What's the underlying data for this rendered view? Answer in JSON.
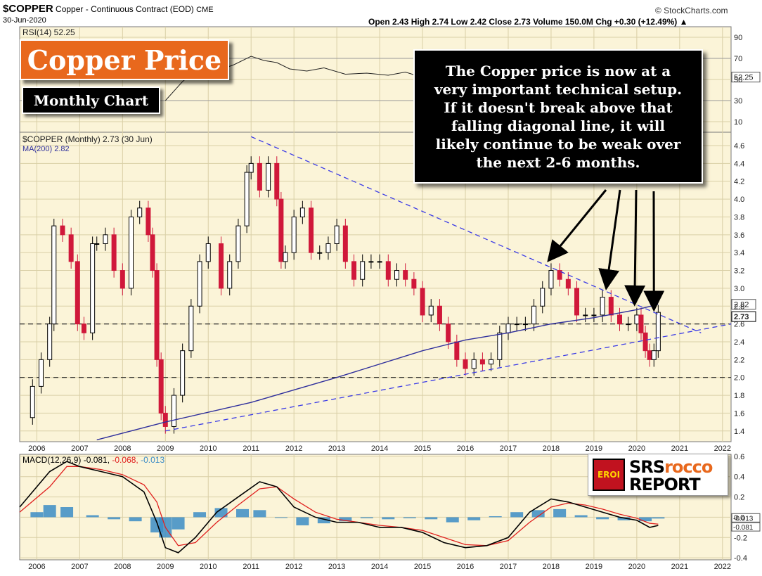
{
  "header": {
    "symbol": "$COPPER",
    "description": "Copper - Continuous Contract (EOD)",
    "exchange": "CME",
    "date": "30-Jun-2020",
    "copyright": "© StockCharts.com",
    "ohlc": "Open 2.43  High 2.74  Low 2.42  Close 2.73  Volume 150.0M  Chg +0.30 (+12.49%) ▲"
  },
  "overlay": {
    "title": "Copper Price",
    "subtitle": "Monthly Chart",
    "note": "The Copper price is now at a\nvery important technical setup.\nIf it doesn't break above that\nfalling diagonal line, it will\nlikely continue to be weak over\nthe next 2-6 months.",
    "logo_line1a": "SRS",
    "logo_line1b": "rocco",
    "logo_line2": "REPORT",
    "logo_badge": "EROI"
  },
  "colors": {
    "panel_bg": "#fbf4d8",
    "up_candle": "#000000",
    "down_candle": "#d0183a",
    "ma_line": "#2f2f9c",
    "trendline": "#3a3ae6",
    "macd_line": "#000000",
    "signal_line": "#e0201e",
    "histogram": "#3b8cc6",
    "accent_orange": "#e8681d"
  },
  "chart_data": [
    {
      "type": "line",
      "title": "RSI(14) 52.25",
      "series": [
        {
          "name": "RSI(14) 52.25",
          "x": [
            2009.0,
            2009.4,
            2009.8,
            2010.2,
            2010.6,
            2011.0,
            2011.3,
            2011.6,
            2011.9,
            2012.3,
            2012.7,
            2013.2,
            2013.7,
            2014.2,
            2014.6,
            2015.0
          ],
          "values": [
            30,
            48,
            62,
            58,
            64,
            72,
            68,
            66,
            60,
            58,
            61,
            55,
            56,
            54,
            57,
            52
          ]
        }
      ],
      "ylim": [
        0,
        100
      ],
      "yticks": [
        10,
        30,
        50,
        70,
        90
      ],
      "last_value_label": "52.25"
    },
    {
      "type": "bar",
      "title": "$COPPER (Monthly) 2.73 (30 Jun)",
      "legend": [
        "$COPPER (Monthly) 2.73 (30 Jun)",
        "MA(200) 2.82"
      ],
      "x_ticks": [
        "2006",
        "2007",
        "2008",
        "2009",
        "2010",
        "2011",
        "2012",
        "2013",
        "2014",
        "2015",
        "2016",
        "2017",
        "2018",
        "2019",
        "2020",
        "2021",
        "2022"
      ],
      "xlim": [
        2005.6,
        2022.2
      ],
      "yticks": [
        1.4,
        1.6,
        1.8,
        2.0,
        2.2,
        2.4,
        2.6,
        2.8,
        3.0,
        3.2,
        3.4,
        3.6,
        3.8,
        4.0,
        4.2,
        4.4,
        4.6
      ],
      "ylim": [
        1.28,
        4.75
      ],
      "close_series": {
        "name": "$COPPER (Monthly) 2.73 (30 Jun)",
        "x": [
          2005.6,
          2005.9,
          2006.1,
          2006.3,
          2006.4,
          2006.6,
          2006.8,
          2006.95,
          2007.1,
          2007.3,
          2007.4,
          2007.6,
          2007.8,
          2008.0,
          2008.2,
          2008.4,
          2008.6,
          2008.7,
          2008.8,
          2008.9,
          2009.0,
          2009.2,
          2009.4,
          2009.6,
          2009.8,
          2010.0,
          2010.3,
          2010.5,
          2010.7,
          2010.9,
          2011.0,
          2011.2,
          2011.4,
          2011.6,
          2011.7,
          2011.8,
          2012.0,
          2012.2,
          2012.4,
          2012.6,
          2012.8,
          2013.0,
          2013.2,
          2013.4,
          2013.6,
          2013.8,
          2014.0,
          2014.2,
          2014.4,
          2014.6,
          2014.8,
          2015.0,
          2015.2,
          2015.4,
          2015.6,
          2015.8,
          2016.0,
          2016.2,
          2016.4,
          2016.6,
          2016.8,
          2017.0,
          2017.2,
          2017.4,
          2017.6,
          2017.8,
          2018.0,
          2018.2,
          2018.4,
          2018.6,
          2018.8,
          2019.0,
          2019.2,
          2019.4,
          2019.6,
          2019.8,
          2020.0,
          2020.1,
          2020.2,
          2020.3,
          2020.4,
          2020.5
        ],
        "values": [
          1.55,
          1.9,
          2.2,
          2.6,
          3.7,
          3.6,
          3.3,
          2.6,
          2.5,
          3.5,
          3.5,
          3.6,
          3.2,
          3.0,
          3.8,
          3.9,
          3.6,
          3.2,
          2.2,
          1.6,
          1.45,
          1.8,
          2.3,
          2.8,
          3.3,
          3.5,
          3.0,
          3.3,
          3.7,
          4.3,
          4.4,
          4.1,
          4.4,
          4.0,
          3.3,
          3.4,
          3.8,
          3.9,
          3.4,
          3.4,
          3.5,
          3.7,
          3.3,
          3.1,
          3.3,
          3.3,
          3.3,
          3.1,
          3.2,
          3.1,
          3.0,
          2.7,
          2.8,
          2.6,
          2.4,
          2.2,
          2.1,
          2.2,
          2.15,
          2.2,
          2.5,
          2.6,
          2.6,
          2.6,
          2.8,
          3.0,
          3.2,
          3.1,
          3.0,
          2.7,
          2.7,
          2.7,
          2.9,
          2.7,
          2.6,
          2.6,
          2.7,
          2.5,
          2.3,
          2.2,
          2.3,
          2.73
        ]
      },
      "ma200": {
        "name": "MA(200) 2.82",
        "x": [
          2007.4,
          2009.0,
          2011.0,
          2013.0,
          2015.0,
          2016.0,
          2017.0,
          2018.0,
          2019.0,
          2020.0,
          2020.5
        ],
        "values": [
          1.3,
          1.5,
          1.72,
          2.0,
          2.3,
          2.42,
          2.5,
          2.6,
          2.67,
          2.76,
          2.82
        ],
        "last_value_label": "2.82"
      },
      "falling_trendline": {
        "x": [
          2011.0,
          2021.5
        ],
        "values": [
          4.7,
          2.5
        ]
      },
      "rising_trendline": {
        "x": [
          2009.0,
          2022.2
        ],
        "values": [
          1.4,
          2.6
        ]
      },
      "horizontal_levels": [
        2.0,
        2.6
      ],
      "arrows_to": [
        {
          "x": 2018.0,
          "y": 3.3
        },
        {
          "x": 2019.3,
          "y": 3.0
        },
        {
          "x": 2019.95,
          "y": 2.82
        },
        {
          "x": 2020.4,
          "y": 2.76
        }
      ],
      "last_value_label": "2.73"
    },
    {
      "type": "line",
      "title": "MACD(12,26,9) -0.081, -0.068, -0.013",
      "legend": [
        "MACD(12,26,9) -0.081",
        "-0.068",
        "-0.013"
      ],
      "ylim": [
        -0.42,
        0.62
      ],
      "yticks": [
        -0.4,
        -0.2,
        0.0,
        0.2,
        0.4,
        0.6
      ],
      "series": [
        {
          "name": "MACD(12,26,9) -0.081",
          "x": [
            2005.6,
            2006.3,
            2006.7,
            2007.0,
            2007.5,
            2008.0,
            2008.5,
            2008.8,
            2009.0,
            2009.3,
            2009.7,
            2010.2,
            2010.7,
            2011.2,
            2011.6,
            2012.0,
            2012.5,
            2013.0,
            2013.5,
            2014.0,
            2014.5,
            2015.0,
            2015.5,
            2016.0,
            2016.5,
            2017.0,
            2017.5,
            2018.0,
            2018.4,
            2018.8,
            2019.2,
            2019.6,
            2020.0,
            2020.3,
            2020.5
          ],
          "values": [
            0.1,
            0.45,
            0.55,
            0.5,
            0.45,
            0.4,
            0.25,
            -0.05,
            -0.3,
            -0.35,
            -0.2,
            0.05,
            0.2,
            0.35,
            0.3,
            0.1,
            0.0,
            -0.05,
            -0.05,
            -0.1,
            -0.1,
            -0.15,
            -0.25,
            -0.3,
            -0.28,
            -0.2,
            0.05,
            0.18,
            0.15,
            0.1,
            0.05,
            0.0,
            -0.03,
            -0.1,
            -0.081
          ]
        },
        {
          "name": "-0.068",
          "x": [
            2005.6,
            2006.3,
            2006.7,
            2007.0,
            2007.5,
            2008.0,
            2008.5,
            2008.8,
            2009.0,
            2009.3,
            2009.7,
            2010.2,
            2010.7,
            2011.2,
            2011.6,
            2012.0,
            2012.5,
            2013.0,
            2013.5,
            2014.0,
            2014.5,
            2015.0,
            2015.5,
            2016.0,
            2016.5,
            2017.0,
            2017.5,
            2018.0,
            2018.4,
            2018.8,
            2019.2,
            2019.6,
            2020.0,
            2020.3,
            2020.5
          ],
          "values": [
            0.05,
            0.3,
            0.5,
            0.5,
            0.47,
            0.42,
            0.32,
            0.15,
            -0.1,
            -0.28,
            -0.25,
            -0.05,
            0.12,
            0.28,
            0.3,
            0.18,
            0.05,
            -0.02,
            -0.05,
            -0.08,
            -0.1,
            -0.13,
            -0.2,
            -0.27,
            -0.28,
            -0.23,
            -0.05,
            0.1,
            0.14,
            0.12,
            0.08,
            0.03,
            -0.01,
            -0.06,
            -0.068
          ]
        }
      ],
      "histogram": {
        "name": "-0.013",
        "x": [
          2006.0,
          2006.3,
          2006.7,
          2007.3,
          2007.8,
          2008.3,
          2008.8,
          2009.0,
          2009.3,
          2009.8,
          2010.3,
          2010.8,
          2011.2,
          2011.7,
          2012.2,
          2012.7,
          2013.2,
          2013.7,
          2014.2,
          2014.7,
          2015.2,
          2015.7,
          2016.2,
          2016.7,
          2017.2,
          2017.7,
          2018.2,
          2018.7,
          2019.2,
          2019.7,
          2020.2,
          2020.5
        ],
        "values": [
          0.05,
          0.12,
          0.1,
          0.02,
          -0.02,
          -0.04,
          -0.15,
          -0.2,
          -0.12,
          0.05,
          0.09,
          0.08,
          0.07,
          0.0,
          -0.08,
          -0.06,
          -0.04,
          -0.01,
          -0.02,
          -0.01,
          -0.02,
          -0.05,
          -0.03,
          0.01,
          0.05,
          0.07,
          0.08,
          0.02,
          -0.02,
          -0.03,
          -0.04,
          -0.013
        ]
      },
      "value_labels": [
        "-0.013",
        "-0.081"
      ]
    }
  ]
}
